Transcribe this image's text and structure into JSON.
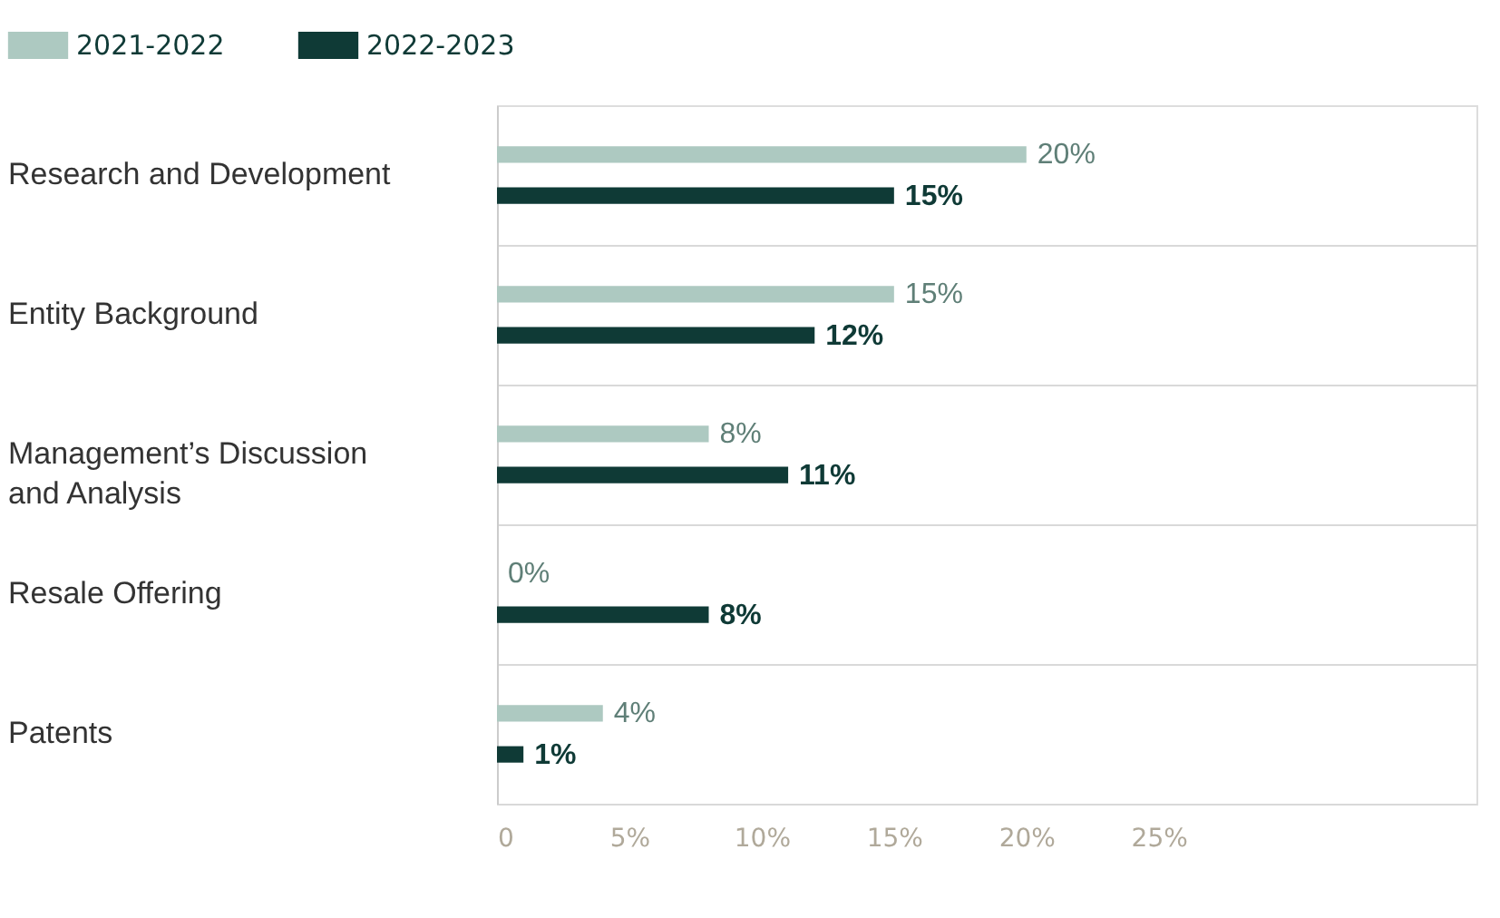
{
  "chart_data": {
    "type": "bar",
    "orientation": "horizontal",
    "categories": [
      "Research and Development",
      "Entity Background",
      "Management’s Discussion and Analysis",
      "Resale Offering",
      "Patents"
    ],
    "series": [
      {
        "name": "2021-2022",
        "color": "#adc9c1",
        "values": [
          20,
          15,
          8,
          0,
          4
        ],
        "value_labels": [
          "20%",
          "15%",
          "8%",
          "0%",
          "4%"
        ]
      },
      {
        "name": "2022-2023",
        "color": "#0f3a36",
        "values": [
          15,
          12,
          11,
          8,
          1
        ],
        "value_labels": [
          "15%",
          "12%",
          "11%",
          "8%",
          "1%"
        ]
      }
    ],
    "xlim": [
      0,
      37
    ],
    "xticks": [
      0,
      {
        "value": 5,
        "label": "5%"
      },
      {
        "value": 10,
        "label": "10%"
      },
      {
        "value": 15,
        "label": "15%"
      },
      {
        "value": 20,
        "label": "20%"
      },
      {
        "value": 25,
        "label": "25%"
      }
    ],
    "grid": "y",
    "legend": "top left"
  }
}
